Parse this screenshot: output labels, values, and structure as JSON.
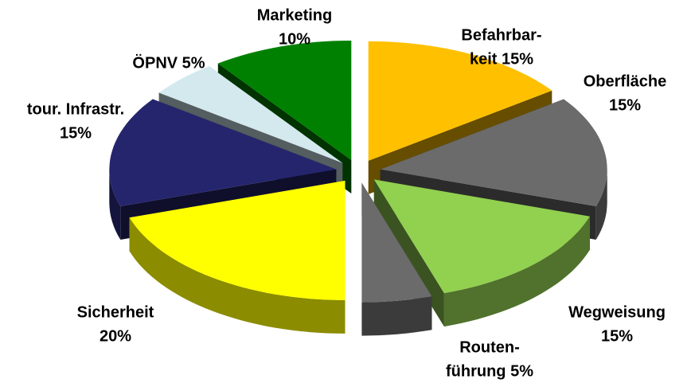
{
  "chart_data": {
    "type": "pie",
    "values": [
      15,
      15,
      15,
      5,
      20,
      15,
      5,
      10
    ],
    "value_labels": [
      [
        "Befahrbar-",
        "keit 15%"
      ],
      [
        "Oberfläche",
        "15%"
      ],
      [
        "Wegweisung",
        "15%"
      ],
      [
        "Routen-",
        "führung  5%"
      ],
      [
        "Sicherheit",
        "20%"
      ],
      [
        "tour. Infrastr.",
        "15%"
      ],
      [
        "ÖPNV 5%"
      ],
      [
        "Marketing",
        "10%"
      ]
    ],
    "colors": [
      "#ffc000",
      "#6b6b6b",
      "#92d050",
      "#6b6b6b",
      "#ffff00",
      "#25256e",
      "#d3e9ee",
      "#008000"
    ]
  }
}
